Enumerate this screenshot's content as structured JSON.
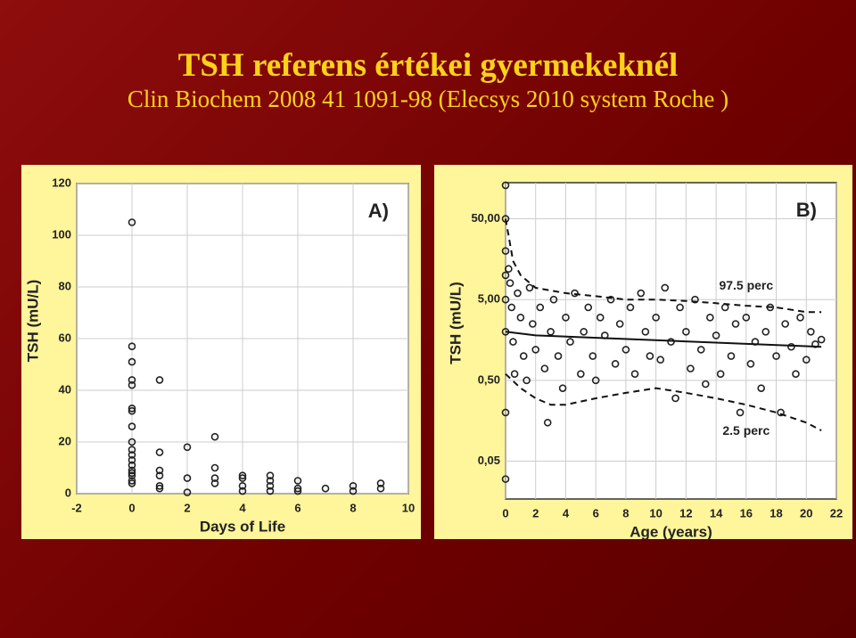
{
  "slide": {
    "title": "TSH  referens értékei gyermekeknél",
    "subtitle": "Clin Biochem 2008 41 1091-98  (Elecsys 2010 system Roche )"
  },
  "chart_data": [
    {
      "type": "scatter",
      "panel_label": "A)",
      "x_label": "Days of Life",
      "y_label": "TSH (mU/L)",
      "xlim": [
        -2,
        10
      ],
      "xticks": [
        -2,
        0,
        2,
        4,
        6,
        8,
        10
      ],
      "ylim": [
        0,
        120
      ],
      "yticks": [
        0,
        20,
        40,
        60,
        80,
        100,
        120
      ],
      "grid": true,
      "log_y": false,
      "x": [
        0,
        0,
        0,
        0,
        0,
        0,
        0,
        0,
        0,
        0,
        0,
        0,
        0,
        0,
        0,
        0,
        0,
        0,
        1,
        1,
        1,
        1,
        1,
        1,
        2,
        2,
        2,
        3,
        3,
        3,
        3,
        4,
        4,
        4,
        4,
        5,
        5,
        5,
        5,
        6,
        6,
        6,
        7,
        8,
        8,
        9,
        9
      ],
      "values": [
        105,
        57,
        51,
        44,
        42,
        33,
        32,
        26,
        20,
        17,
        15,
        13,
        11,
        9,
        8,
        7,
        5,
        4,
        44,
        16,
        9,
        7,
        3,
        2,
        18,
        6,
        0.5,
        22,
        10,
        6,
        4,
        7,
        6,
        3,
        1,
        7,
        5,
        3,
        1,
        5,
        2,
        1,
        2,
        3,
        1,
        4,
        2
      ],
      "lines": []
    },
    {
      "type": "scatter",
      "panel_label": "B)",
      "x_label": "Age (years)",
      "y_label": "TSH (mU/L)",
      "xlim": [
        0,
        22
      ],
      "xticks": [
        0,
        2,
        4,
        6,
        8,
        10,
        12,
        14,
        16,
        18,
        20,
        22
      ],
      "ylim": [
        0.017,
        140
      ],
      "yticks": [
        {
          "value": 0.05,
          "label": "0,05"
        },
        {
          "value": 0.5,
          "label": "0,50"
        },
        {
          "value": 5,
          "label": "5,00"
        },
        {
          "value": 50,
          "label": "50,00"
        }
      ],
      "grid": true,
      "log_y": true,
      "x": [
        0,
        0,
        0,
        0,
        0,
        0,
        0,
        0,
        0.2,
        0.3,
        0.4,
        0.5,
        0.6,
        0.8,
        1,
        1.2,
        1.4,
        1.6,
        1.8,
        2,
        2.3,
        2.6,
        2.8,
        3,
        3.2,
        3.5,
        3.8,
        4,
        4.3,
        4.6,
        5,
        5.2,
        5.5,
        5.8,
        6,
        6.3,
        6.6,
        7,
        7.3,
        7.6,
        8,
        8.3,
        8.6,
        9,
        9.3,
        9.6,
        10,
        10.3,
        10.6,
        11,
        11.3,
        11.6,
        12,
        12.3,
        12.6,
        13,
        13.3,
        13.6,
        14,
        14.3,
        14.6,
        15,
        15.3,
        15.6,
        16,
        16.3,
        16.6,
        17,
        17.3,
        17.6,
        18,
        18.3,
        18.6,
        19,
        19.3,
        19.6,
        20,
        20.3,
        20.6,
        21
      ],
      "values": [
        130,
        50,
        20,
        10,
        5,
        2,
        0.2,
        0.03,
        12,
        8,
        4,
        1.5,
        0.6,
        6,
        3,
        1,
        0.5,
        7,
        2.5,
        1.2,
        4,
        0.7,
        0.15,
        2,
        5,
        1,
        0.4,
        3,
        1.5,
        6,
        0.6,
        2,
        4,
        1,
        0.5,
        3,
        1.8,
        5,
        0.8,
        2.5,
        1.2,
        4,
        0.6,
        6,
        2,
        1,
        3,
        0.9,
        7,
        1.5,
        0.3,
        4,
        2,
        0.7,
        5,
        1.2,
        0.45,
        3,
        1.8,
        0.6,
        4,
        1,
        2.5,
        0.2,
        3,
        0.8,
        1.5,
        0.4,
        2,
        4,
        1,
        0.2,
        2.5,
        1.3,
        0.6,
        3,
        0.9,
        2,
        1.4,
        1.6
      ],
      "lines": [
        {
          "name": "97.5 perc",
          "dash": true,
          "x": [
            0,
            0.5,
            1,
            2,
            4,
            6,
            8,
            10,
            12,
            14,
            16,
            18,
            20,
            21
          ],
          "values": [
            50,
            15,
            10,
            7,
            6,
            5.5,
            5,
            5,
            4.8,
            4.5,
            4.2,
            4,
            3.5,
            3.5
          ]
        },
        {
          "name": "2.5 perc",
          "dash": true,
          "x": [
            0,
            1,
            2,
            3,
            4,
            6,
            8,
            10,
            12,
            14,
            16,
            18,
            20,
            21
          ],
          "values": [
            0.6,
            0.4,
            0.3,
            0.25,
            0.25,
            0.3,
            0.35,
            0.4,
            0.35,
            0.3,
            0.25,
            0.2,
            0.15,
            0.12
          ]
        },
        {
          "dash": false,
          "x": [
            0,
            2,
            21
          ],
          "values": [
            2,
            1.8,
            1.3
          ]
        }
      ]
    }
  ]
}
